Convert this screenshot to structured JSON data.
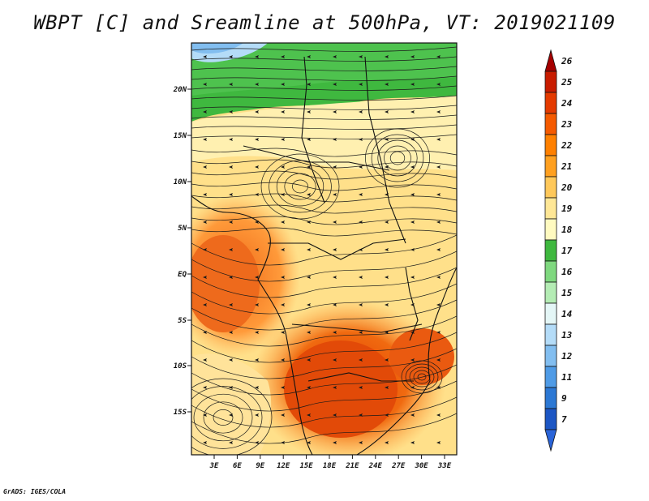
{
  "title": "WBPT [C] and Sreamline at 500hPa, VT: 2019021109",
  "footer": "GrADS: IGES/COLA",
  "lat_labels": [
    "20N",
    "15N",
    "10N",
    "5N",
    "EQ",
    "5S",
    "10S",
    "15S"
  ],
  "lon_labels": [
    "3E",
    "6E",
    "9E",
    "12E",
    "15E",
    "18E",
    "21E",
    "24E",
    "27E",
    "30E",
    "33E"
  ],
  "colorbar": {
    "labels": [
      "26",
      "25",
      "24",
      "23",
      "22",
      "21",
      "20",
      "19",
      "18",
      "17",
      "16",
      "15",
      "14",
      "13",
      "12",
      "11",
      "9",
      "7"
    ],
    "colors": [
      "#a50000",
      "#c81c00",
      "#e43a00",
      "#f55a00",
      "#ff8000",
      "#ffa020",
      "#ffc85a",
      "#ffe796",
      "#fffac0",
      "#3fb83f",
      "#7fd87f",
      "#b4ecb4",
      "#e4f6f6",
      "#b4dcf8",
      "#82bef0",
      "#4f9be6",
      "#2c78d4",
      "#1c56c4",
      "#2a64d8"
    ]
  },
  "map_regions": {
    "sahara_cool_band": "green",
    "nw_corner": "light-blue",
    "central_africa": "yellow-orange",
    "atlantic_equatorial": "orange",
    "southern_africa": "red-orange"
  }
}
